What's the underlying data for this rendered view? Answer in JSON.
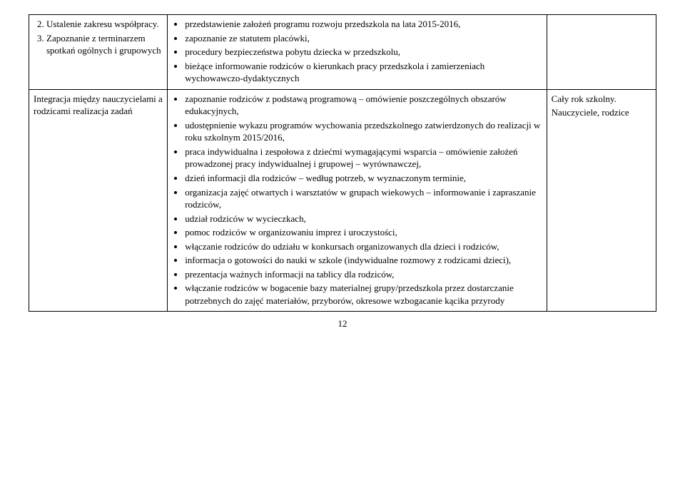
{
  "table": {
    "rows": [
      {
        "left_items": [
          "Ustalenie zakresu współpracy.",
          "Zapoznanie z terminarzem spotkań ogólnych i grupowych"
        ],
        "left_start": 2,
        "mid_bullets": [
          "przedstawienie założeń programu rozwoju przedszkola na lata 2015-2016,",
          "zapoznanie ze statutem placówki,",
          "procedury bezpieczeństwa pobytu dziecka w przedszkolu,",
          "bieżące informowanie rodziców o kierunkach pracy przedszkola i zamierzeniach wychowawczo-dydaktycznych"
        ],
        "right_lines": []
      },
      {
        "left_text": "Integracja między nauczycielami a rodzicami realizacja zadań",
        "mid_bullets": [
          "zapoznanie rodziców z podstawą programową – omówienie poszczególnych obszarów edukacyjnych,",
          "udostępnienie wykazu programów wychowania przedszkolnego zatwierdzonych do realizacji w roku szkolnym 2015/2016,",
          "praca indywidualna i zespołowa z dziećmi wymagającymi wsparcia – omówienie założeń prowadzonej pracy indywidualnej i grupowej – wyrównawczej,",
          "dzień informacji dla rodziców – według potrzeb, w wyznaczonym terminie,",
          "organizacja zajęć otwartych i warsztatów w grupach wiekowych – informowanie i zapraszanie rodziców,",
          "udział rodziców w wycieczkach,",
          "pomoc rodziców w organizowaniu imprez i uroczystości,",
          "włączanie rodziców do udziału w konkursach organizowanych dla dzieci i rodziców,",
          "informacja o gotowości do nauki w szkole (indywidualne rozmowy z rodzicami dzieci),",
          "prezentacja ważnych informacji na tablicy dla rodziców,",
          "włączanie rodziców w bogacenie bazy materialnej grupy/przedszkola przez dostarczanie potrzebnych do zajęć materiałów, przyborów, okresowe wzbogacanie kącika przyrody"
        ],
        "right_lines": [
          "Cały rok szkolny.",
          "Nauczyciele, rodzice"
        ]
      }
    ]
  },
  "page_number": "12"
}
